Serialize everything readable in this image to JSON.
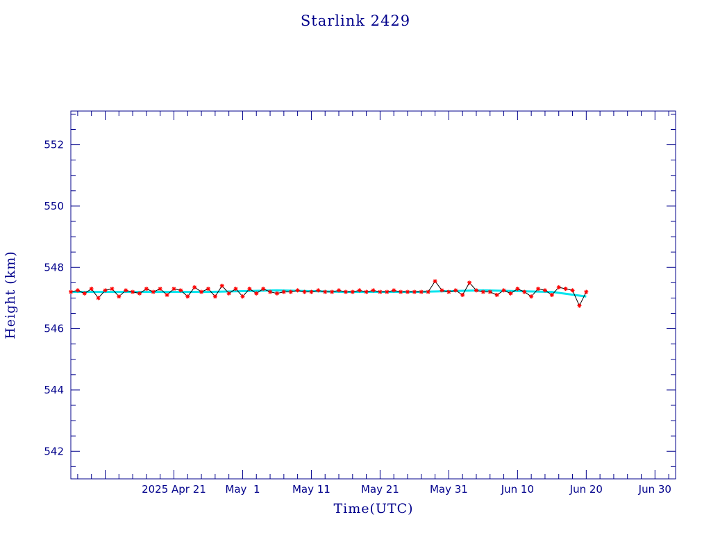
{
  "chart_data": {
    "type": "scatter",
    "title": "Starlink 2429",
    "xlabel": "Time(UTC)",
    "ylabel": "Height (km)",
    "x_range": [
      "2025-04-06",
      "2025-07-03"
    ],
    "ylim": [
      541.1,
      553.1
    ],
    "y_ticks": [
      542,
      544,
      546,
      548,
      550,
      552
    ],
    "x_ticks": [
      {
        "date": "2025-04-21",
        "label": "2025 Apr 21"
      },
      {
        "date": "2025-05-01",
        "label": "May  1"
      },
      {
        "date": "2025-05-11",
        "label": "May 11"
      },
      {
        "date": "2025-05-21",
        "label": "May 21"
      },
      {
        "date": "2025-05-31",
        "label": "May 31"
      },
      {
        "date": "2025-06-10",
        "label": "Jun 10"
      },
      {
        "date": "2025-06-20",
        "label": "Jun 20"
      },
      {
        "date": "2025-06-30",
        "label": "Jun 30"
      }
    ],
    "grid": false,
    "colors": {
      "axis": "#00008b",
      "points": "#ff0000",
      "line": "#000000",
      "mean_line": "#00e5ee"
    },
    "series": [
      {
        "values": [
          [
            "2025-04-06",
            547.2
          ],
          [
            "2025-04-07",
            547.25
          ],
          [
            "2025-04-08",
            547.15
          ],
          [
            "2025-04-09",
            547.3
          ],
          [
            "2025-04-10",
            547.0
          ],
          [
            "2025-04-11",
            547.25
          ],
          [
            "2025-04-12",
            547.3
          ],
          [
            "2025-04-13",
            547.05
          ],
          [
            "2025-04-14",
            547.25
          ],
          [
            "2025-04-15",
            547.2
          ],
          [
            "2025-04-16",
            547.15
          ],
          [
            "2025-04-17",
            547.3
          ],
          [
            "2025-04-18",
            547.2
          ],
          [
            "2025-04-19",
            547.3
          ],
          [
            "2025-04-20",
            547.1
          ],
          [
            "2025-04-21",
            547.3
          ],
          [
            "2025-04-22",
            547.25
          ],
          [
            "2025-04-23",
            547.05
          ],
          [
            "2025-04-24",
            547.35
          ],
          [
            "2025-04-25",
            547.2
          ],
          [
            "2025-04-26",
            547.3
          ],
          [
            "2025-04-27",
            547.05
          ],
          [
            "2025-04-28",
            547.4
          ],
          [
            "2025-04-29",
            547.15
          ],
          [
            "2025-04-30",
            547.3
          ],
          [
            "2025-05-01",
            547.05
          ],
          [
            "2025-05-02",
            547.3
          ],
          [
            "2025-05-03",
            547.15
          ],
          [
            "2025-05-04",
            547.3
          ],
          [
            "2025-05-05",
            547.2
          ],
          [
            "2025-05-06",
            547.15
          ],
          [
            "2025-05-07",
            547.2
          ],
          [
            "2025-05-08",
            547.2
          ],
          [
            "2025-05-09",
            547.25
          ],
          [
            "2025-05-10",
            547.2
          ],
          [
            "2025-05-11",
            547.2
          ],
          [
            "2025-05-12",
            547.25
          ],
          [
            "2025-05-13",
            547.2
          ],
          [
            "2025-05-14",
            547.2
          ],
          [
            "2025-05-15",
            547.25
          ],
          [
            "2025-05-16",
            547.2
          ],
          [
            "2025-05-17",
            547.2
          ],
          [
            "2025-05-18",
            547.25
          ],
          [
            "2025-05-19",
            547.2
          ],
          [
            "2025-05-20",
            547.25
          ],
          [
            "2025-05-21",
            547.2
          ],
          [
            "2025-05-22",
            547.2
          ],
          [
            "2025-05-23",
            547.25
          ],
          [
            "2025-05-24",
            547.2
          ],
          [
            "2025-05-25",
            547.2
          ],
          [
            "2025-05-26",
            547.2
          ],
          [
            "2025-05-27",
            547.2
          ],
          [
            "2025-05-28",
            547.2
          ],
          [
            "2025-05-29",
            547.55
          ],
          [
            "2025-05-30",
            547.25
          ],
          [
            "2025-05-31",
            547.2
          ],
          [
            "2025-06-01",
            547.25
          ],
          [
            "2025-06-02",
            547.1
          ],
          [
            "2025-06-03",
            547.5
          ],
          [
            "2025-06-04",
            547.25
          ],
          [
            "2025-06-05",
            547.2
          ],
          [
            "2025-06-06",
            547.2
          ],
          [
            "2025-06-07",
            547.1
          ],
          [
            "2025-06-08",
            547.25
          ],
          [
            "2025-06-09",
            547.15
          ],
          [
            "2025-06-10",
            547.3
          ],
          [
            "2025-06-11",
            547.2
          ],
          [
            "2025-06-12",
            547.05
          ],
          [
            "2025-06-13",
            547.3
          ],
          [
            "2025-06-14",
            547.25
          ],
          [
            "2025-06-15",
            547.1
          ],
          [
            "2025-06-16",
            547.35
          ],
          [
            "2025-06-17",
            547.3
          ],
          [
            "2025-06-18",
            547.25
          ],
          [
            "2025-06-19",
            546.75
          ],
          [
            "2025-06-20",
            547.2
          ]
        ]
      }
    ],
    "mean_series": [
      [
        "2025-04-06",
        547.2
      ],
      [
        "2025-04-16",
        547.2
      ],
      [
        "2025-04-26",
        547.2
      ],
      [
        "2025-05-06",
        547.25
      ],
      [
        "2025-05-16",
        547.2
      ],
      [
        "2025-05-26",
        547.2
      ],
      [
        "2025-06-05",
        547.25
      ],
      [
        "2025-06-15",
        547.2
      ],
      [
        "2025-06-20",
        547.05
      ]
    ]
  }
}
